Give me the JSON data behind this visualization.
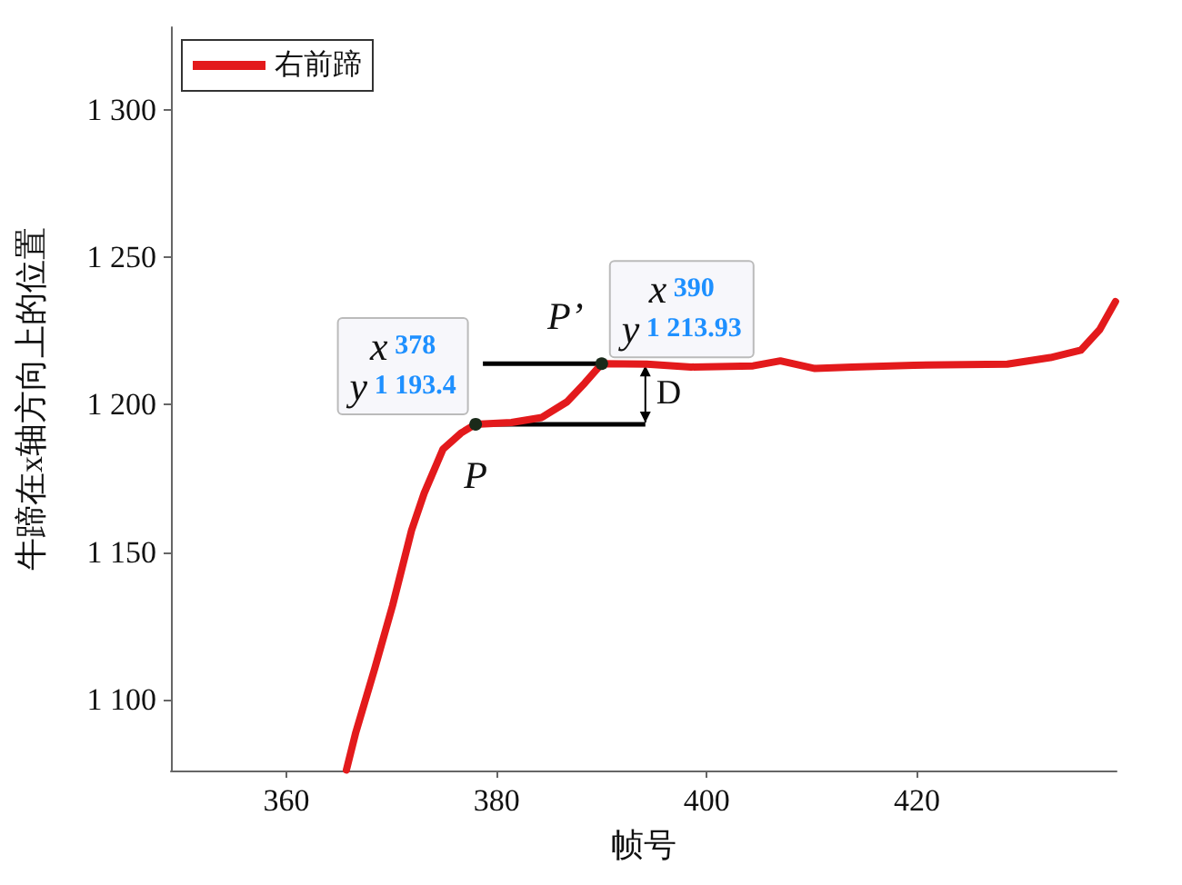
{
  "chart_data": {
    "type": "line",
    "xlabel": "帧号",
    "ylabel": "牛蹄在x轴方向上的位置",
    "x": [
      365.7,
      366.6,
      368.4,
      370.1,
      371.9,
      373.1,
      374.9,
      376.6,
      378,
      381.4,
      384.3,
      386.7,
      388.4,
      390,
      394.3,
      398.5,
      404.4,
      407,
      410.3,
      413.8,
      419.7,
      428.6,
      432.7,
      435.6,
      437.4,
      438.9
    ],
    "series": [
      {
        "name": "右前蹄",
        "color": "#e31a1c",
        "values": [
          1076.2,
          1089,
          1110.6,
          1132,
          1157.4,
          1170,
          1185,
          1190.4,
          1193.4,
          1194,
          1195.7,
          1201,
          1207.4,
          1213.93,
          1213.8,
          1212.8,
          1213.2,
          1214.9,
          1212.3,
          1212.8,
          1213.4,
          1213.8,
          1216,
          1218.5,
          1225.5,
          1235
        ]
      }
    ],
    "xlim": [
      349,
      439
    ],
    "xticks": [
      360,
      380,
      400,
      420
    ],
    "ylim": [
      1076,
      1328
    ],
    "yticks": [
      {
        "value": 1100,
        "label": "1 100"
      },
      {
        "value": 1150,
        "label": "1 150"
      },
      {
        "value": 1200,
        "label": "1 200"
      },
      {
        "value": 1250,
        "label": "1 250"
      },
      {
        "value": 1300,
        "label": "1 300"
      }
    ],
    "grid": false,
    "legend": "top left",
    "marker": "none",
    "line_style": "solid",
    "annotations": [
      "x 378\ny 1 193.4",
      "x 390\ny 1 213.93",
      {
        "text": "P",
        "x": 378,
        "y": 1193.4
      },
      {
        "text": "P’",
        "x": 390,
        "y": 1213.93
      },
      "D"
    ]
  }
}
